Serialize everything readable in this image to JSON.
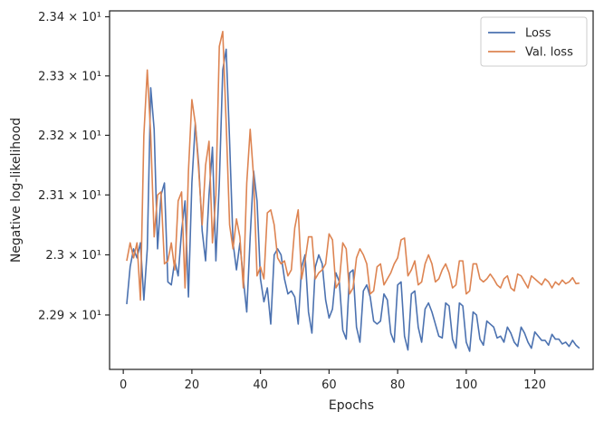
{
  "chart_data": {
    "type": "line",
    "xlabel": "Epochs",
    "ylabel": "Negative log-likelihood",
    "xlim": [
      -4,
      137
    ],
    "ylim": [
      22.81,
      23.41
    ],
    "y_scale": "log",
    "grid": false,
    "legend_position": "top-right",
    "x_ticks": [
      {
        "value": 0,
        "label": "0"
      },
      {
        "value": 20,
        "label": "20"
      },
      {
        "value": 40,
        "label": "40"
      },
      {
        "value": 60,
        "label": "60"
      },
      {
        "value": 80,
        "label": "80"
      },
      {
        "value": 100,
        "label": "100"
      },
      {
        "value": 120,
        "label": "120"
      }
    ],
    "y_ticks": [
      {
        "value": 22.9,
        "label": "2.29 × 10¹"
      },
      {
        "value": 23.0,
        "label": "2.3 × 10¹"
      },
      {
        "value": 23.1,
        "label": "2.31 × 10¹"
      },
      {
        "value": 23.2,
        "label": "2.32 × 10¹"
      },
      {
        "value": 23.3,
        "label": "2.33 × 10¹"
      },
      {
        "value": 23.4,
        "label": "2.34 × 10¹"
      }
    ],
    "series": [
      {
        "name": "Loss",
        "color": "#4c72b0",
        "x": [
          1,
          2,
          3,
          4,
          5,
          6,
          7,
          8,
          9,
          10,
          11,
          12,
          13,
          14,
          15,
          16,
          17,
          18,
          19,
          20,
          21,
          22,
          23,
          24,
          25,
          26,
          27,
          28,
          29,
          30,
          31,
          32,
          33,
          34,
          35,
          36,
          37,
          38,
          39,
          40,
          41,
          42,
          43,
          44,
          45,
          46,
          47,
          48,
          49,
          50,
          51,
          52,
          53,
          54,
          55,
          56,
          57,
          58,
          59,
          60,
          61,
          62,
          63,
          64,
          65,
          66,
          67,
          68,
          69,
          70,
          71,
          72,
          73,
          74,
          75,
          76,
          77,
          78,
          79,
          80,
          81,
          82,
          83,
          84,
          85,
          86,
          87,
          88,
          89,
          90,
          91,
          92,
          93,
          94,
          95,
          96,
          97,
          98,
          99,
          100,
          101,
          102,
          103,
          104,
          105,
          106,
          107,
          108,
          109,
          110,
          111,
          112,
          113,
          114,
          115,
          116,
          117,
          118,
          119,
          120,
          121,
          122,
          123,
          124,
          125,
          126,
          127,
          128,
          129,
          130,
          131,
          132,
          133
        ],
        "values": [
          22.918,
          22.98,
          23.01,
          22.995,
          23.02,
          22.925,
          23.01,
          23.28,
          23.21,
          23.01,
          23.1,
          23.12,
          22.955,
          22.95,
          22.99,
          22.965,
          23.04,
          23.09,
          22.93,
          23.12,
          23.22,
          23.15,
          23.04,
          22.99,
          23.1,
          23.18,
          22.99,
          23.12,
          23.31,
          23.345,
          23.19,
          23.02,
          22.975,
          23.02,
          22.96,
          22.905,
          23.03,
          23.14,
          23.09,
          22.96,
          22.922,
          22.945,
          22.885,
          23.0,
          23.01,
          23.0,
          22.96,
          22.935,
          22.94,
          22.93,
          22.885,
          22.98,
          23.0,
          22.905,
          22.87,
          22.98,
          23.0,
          22.985,
          22.925,
          22.895,
          22.91,
          22.97,
          22.955,
          22.875,
          22.86,
          22.97,
          22.975,
          22.88,
          22.855,
          22.94,
          22.95,
          22.93,
          22.89,
          22.885,
          22.89,
          22.935,
          22.925,
          22.87,
          22.855,
          22.95,
          22.955,
          22.865,
          22.842,
          22.935,
          22.94,
          22.88,
          22.855,
          22.91,
          22.92,
          22.905,
          22.885,
          22.865,
          22.862,
          22.92,
          22.915,
          22.86,
          22.845,
          22.92,
          22.915,
          22.855,
          22.84,
          22.905,
          22.9,
          22.86,
          22.85,
          22.89,
          22.885,
          22.88,
          22.862,
          22.865,
          22.855,
          22.88,
          22.87,
          22.855,
          22.848,
          22.88,
          22.87,
          22.855,
          22.845,
          22.872,
          22.865,
          22.858,
          22.858,
          22.85,
          22.868,
          22.86,
          22.86,
          22.852,
          22.855,
          22.848,
          22.858,
          22.85,
          22.845
        ]
      },
      {
        "name": "Val. loss",
        "color": "#dd8452",
        "x": [
          1,
          2,
          3,
          4,
          5,
          6,
          7,
          8,
          9,
          10,
          11,
          12,
          13,
          14,
          15,
          16,
          17,
          18,
          19,
          20,
          21,
          22,
          23,
          24,
          25,
          26,
          27,
          28,
          29,
          30,
          31,
          32,
          33,
          34,
          35,
          36,
          37,
          38,
          39,
          40,
          41,
          42,
          43,
          44,
          45,
          46,
          47,
          48,
          49,
          50,
          51,
          52,
          53,
          54,
          55,
          56,
          57,
          58,
          59,
          60,
          61,
          62,
          63,
          64,
          65,
          66,
          67,
          68,
          69,
          70,
          71,
          72,
          73,
          74,
          75,
          76,
          77,
          78,
          79,
          80,
          81,
          82,
          83,
          84,
          85,
          86,
          87,
          88,
          89,
          90,
          91,
          92,
          93,
          94,
          95,
          96,
          97,
          98,
          99,
          100,
          101,
          102,
          103,
          104,
          105,
          106,
          107,
          108,
          109,
          110,
          111,
          112,
          113,
          114,
          115,
          116,
          117,
          118,
          119,
          120,
          121,
          122,
          123,
          124,
          125,
          126,
          127,
          128,
          129,
          130,
          131,
          132,
          133
        ],
        "values": [
          22.99,
          23.02,
          22.995,
          23.02,
          22.925,
          23.2,
          23.31,
          23.2,
          23.03,
          23.1,
          23.105,
          22.985,
          22.99,
          23.02,
          22.975,
          23.09,
          23.105,
          22.945,
          23.14,
          23.26,
          23.22,
          23.14,
          23.05,
          23.15,
          23.19,
          23.02,
          23.1,
          23.35,
          23.375,
          23.22,
          23.05,
          23.01,
          23.06,
          23.03,
          22.945,
          23.12,
          23.21,
          23.13,
          22.965,
          22.98,
          22.96,
          23.07,
          23.075,
          23.05,
          22.995,
          22.985,
          22.99,
          22.965,
          22.975,
          23.045,
          23.075,
          22.96,
          22.99,
          23.03,
          23.03,
          22.96,
          22.97,
          22.975,
          22.985,
          23.035,
          23.025,
          22.945,
          22.955,
          23.02,
          23.01,
          22.935,
          22.945,
          22.995,
          23.01,
          23.0,
          22.985,
          22.935,
          22.94,
          22.98,
          22.985,
          22.95,
          22.96,
          22.97,
          22.985,
          22.995,
          23.025,
          23.028,
          22.965,
          22.975,
          22.99,
          22.95,
          22.955,
          22.985,
          23.0,
          22.985,
          22.955,
          22.96,
          22.975,
          22.985,
          22.97,
          22.945,
          22.95,
          22.99,
          22.99,
          22.935,
          22.94,
          22.985,
          22.985,
          22.96,
          22.955,
          22.96,
          22.968,
          22.96,
          22.95,
          22.945,
          22.96,
          22.965,
          22.945,
          22.94,
          22.968,
          22.965,
          22.955,
          22.945,
          22.965,
          22.96,
          22.955,
          22.95,
          22.96,
          22.955,
          22.945,
          22.955,
          22.95,
          22.958,
          22.952,
          22.955,
          22.962,
          22.952,
          22.953
        ]
      }
    ]
  }
}
